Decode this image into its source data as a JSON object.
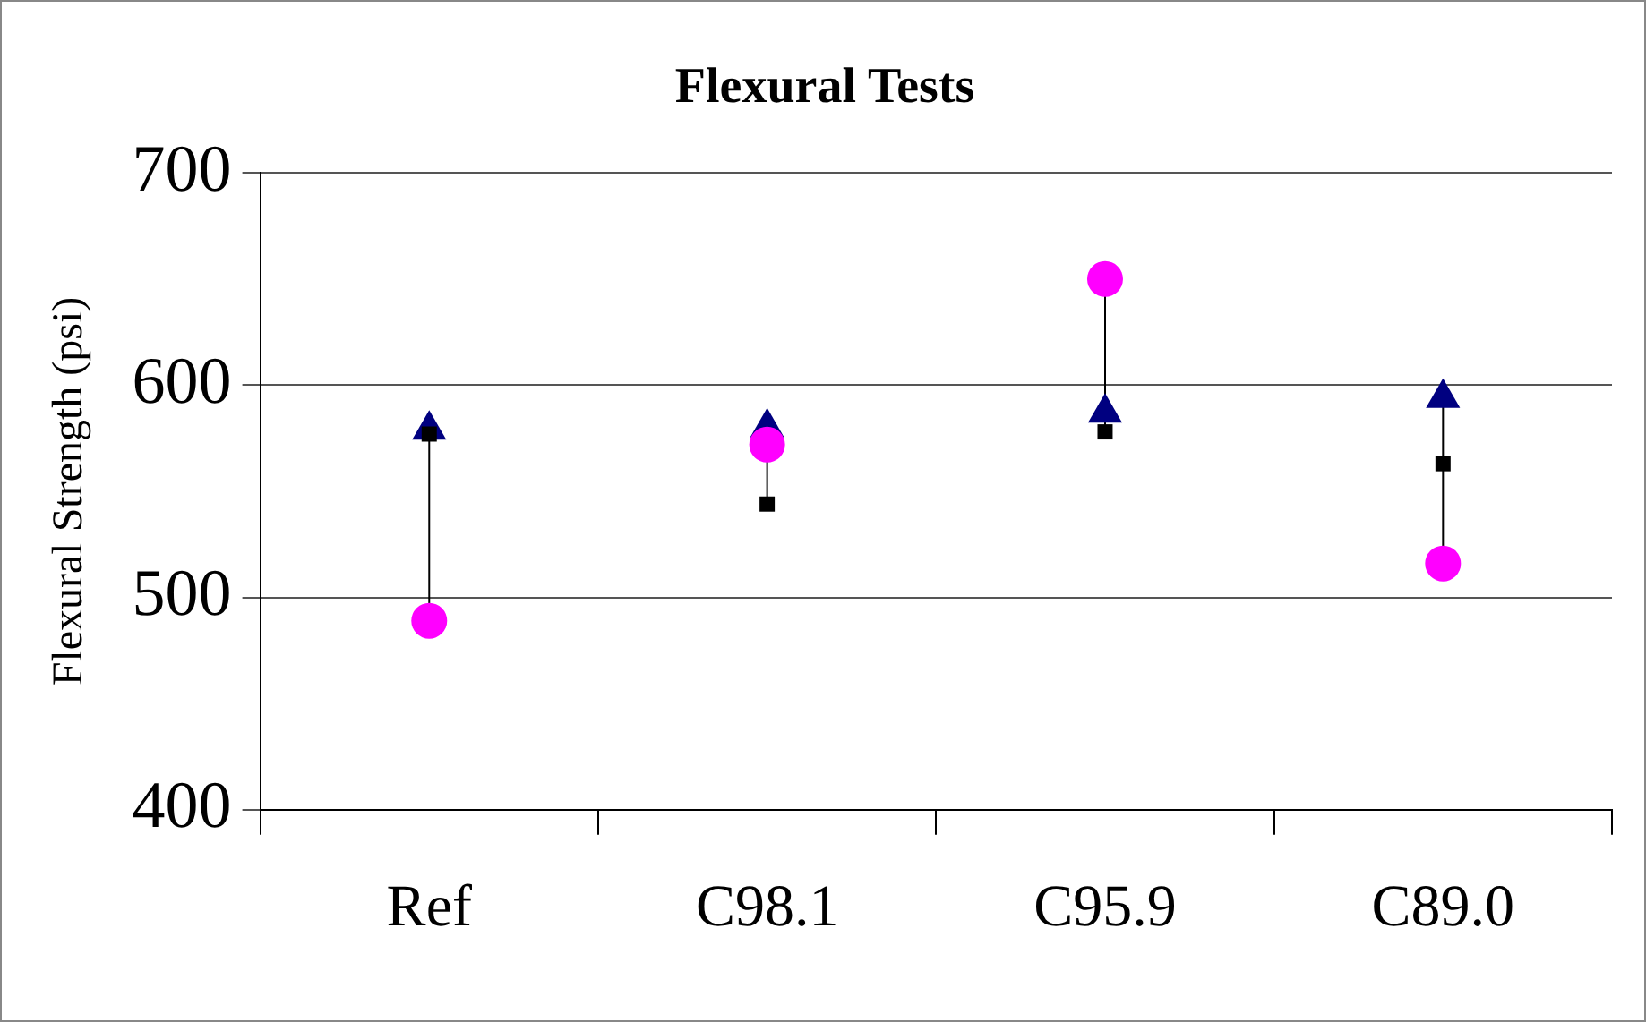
{
  "chart_data": {
    "type": "scatter",
    "title": "Flexural Tests",
    "ylabel": "Flexural Strength (psi)",
    "categories": [
      "Ref",
      "C98.1",
      "C95.9",
      "C89.0"
    ],
    "series": [
      {
        "color": "#000080",
        "marker": "triangle",
        "values": [
          579,
          580,
          587,
          594
        ]
      },
      {
        "color": "#ff00ff",
        "marker": "circle",
        "values": [
          489,
          572,
          650,
          516
        ]
      },
      {
        "color": "#000000",
        "marker": "square",
        "values": [
          577,
          544,
          578,
          563
        ]
      }
    ],
    "ylim": [
      400,
      700
    ],
    "yticks": [
      400,
      500,
      600,
      700
    ],
    "grid": "y",
    "legend": false
  }
}
